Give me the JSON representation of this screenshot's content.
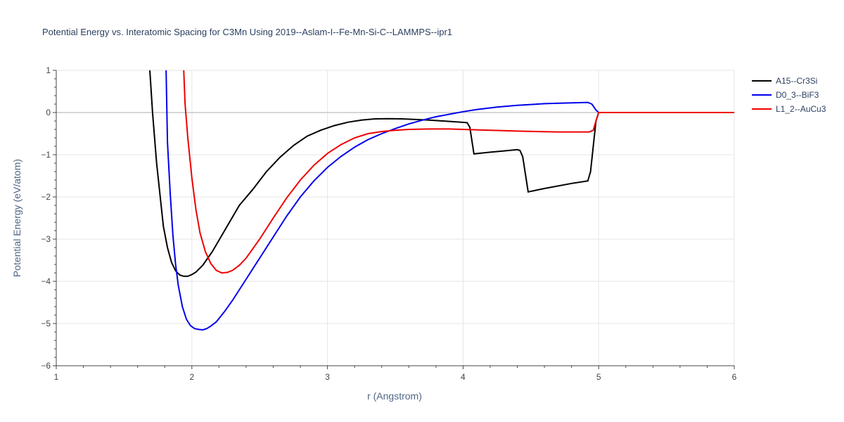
{
  "chart_data": {
    "type": "line",
    "title": "Potential Energy vs. Interatomic Spacing for C3Mn Using 2019--Aslam-I--Fe-Mn-Si-C--LAMMPS--ipr1",
    "xlabel": "r (Angstrom)",
    "ylabel": "Potential Energy (eV/atom)",
    "xlim": [
      1,
      6
    ],
    "ylim": [
      -6,
      1
    ],
    "xticks": [
      1,
      2,
      3,
      4,
      5,
      6
    ],
    "xtick_labels": [
      "1",
      "2",
      "3",
      "4",
      "5",
      "6"
    ],
    "yticks": [
      1,
      0,
      -1,
      -2,
      -3,
      -4,
      -5,
      -6
    ],
    "ytick_labels": [
      "1",
      "0",
      "−1",
      "−2",
      "−3",
      "−4",
      "−5",
      "−6"
    ],
    "grid": true,
    "legend_position": "top-right",
    "series": [
      {
        "name": "A15--Cr3Si",
        "color": "#000000",
        "x": [
          1.69,
          1.71,
          1.74,
          1.76,
          1.79,
          1.82,
          1.85,
          1.88,
          1.91,
          1.94,
          1.97,
          2.0,
          2.03,
          2.08,
          2.15,
          2.25,
          2.35,
          2.45,
          2.55,
          2.65,
          2.75,
          2.85,
          2.95,
          3.05,
          3.15,
          3.25,
          3.35,
          3.45,
          3.55,
          3.65,
          3.75,
          3.85,
          3.95,
          4.03,
          4.05,
          4.08,
          4.2,
          4.3,
          4.4,
          4.42,
          4.44,
          4.48,
          4.6,
          4.8,
          4.92,
          4.94,
          4.96,
          4.98,
          5.0,
          5.1,
          5.5,
          6.0
        ],
        "y": [
          1.0,
          0.0,
          -1.2,
          -1.8,
          -2.7,
          -3.2,
          -3.55,
          -3.75,
          -3.85,
          -3.88,
          -3.88,
          -3.84,
          -3.78,
          -3.62,
          -3.3,
          -2.75,
          -2.2,
          -1.82,
          -1.4,
          -1.06,
          -0.78,
          -0.56,
          -0.42,
          -0.31,
          -0.23,
          -0.18,
          -0.15,
          -0.145,
          -0.15,
          -0.165,
          -0.18,
          -0.2,
          -0.22,
          -0.24,
          -0.35,
          -0.98,
          -0.94,
          -0.91,
          -0.88,
          -0.9,
          -1.05,
          -1.88,
          -1.8,
          -1.68,
          -1.62,
          -1.4,
          -0.8,
          -0.2,
          0.0,
          0.0,
          0.0,
          0.0
        ]
      },
      {
        "name": "D0_3--BiF3",
        "color": "#0000ee",
        "x": [
          1.81,
          1.82,
          1.84,
          1.86,
          1.88,
          1.9,
          1.93,
          1.96,
          1.99,
          2.02,
          2.05,
          2.08,
          2.11,
          2.14,
          2.18,
          2.24,
          2.3,
          2.4,
          2.5,
          2.6,
          2.7,
          2.8,
          2.9,
          3.0,
          3.1,
          3.2,
          3.3,
          3.4,
          3.5,
          3.6,
          3.7,
          3.8,
          3.9,
          4.0,
          4.1,
          4.25,
          4.4,
          4.6,
          4.8,
          4.92,
          4.95,
          4.98,
          5.0,
          5.5,
          6.0
        ],
        "y": [
          1.0,
          -0.7,
          -1.9,
          -2.9,
          -3.6,
          -4.1,
          -4.6,
          -4.9,
          -5.05,
          -5.12,
          -5.14,
          -5.15,
          -5.12,
          -5.06,
          -4.96,
          -4.72,
          -4.45,
          -3.95,
          -3.45,
          -2.95,
          -2.45,
          -2.0,
          -1.62,
          -1.3,
          -1.04,
          -0.82,
          -0.64,
          -0.5,
          -0.38,
          -0.27,
          -0.18,
          -0.1,
          -0.04,
          0.02,
          0.07,
          0.13,
          0.17,
          0.21,
          0.23,
          0.24,
          0.2,
          0.06,
          0.0,
          0.0,
          0.0
        ]
      },
      {
        "name": "L1_2--AuCu3",
        "color": "#ee0000",
        "x": [
          1.94,
          1.95,
          1.97,
          2.0,
          2.03,
          2.06,
          2.1,
          2.14,
          2.18,
          2.22,
          2.26,
          2.3,
          2.35,
          2.4,
          2.5,
          2.6,
          2.7,
          2.8,
          2.9,
          3.0,
          3.1,
          3.2,
          3.3,
          3.4,
          3.5,
          3.6,
          3.75,
          3.9,
          4.1,
          4.4,
          4.7,
          4.93,
          4.96,
          4.98,
          5.0,
          5.5,
          6.0
        ],
        "y": [
          1.0,
          0.2,
          -0.6,
          -1.55,
          -2.3,
          -2.85,
          -3.3,
          -3.58,
          -3.74,
          -3.8,
          -3.79,
          -3.74,
          -3.62,
          -3.45,
          -3.0,
          -2.5,
          -2.02,
          -1.6,
          -1.25,
          -0.97,
          -0.76,
          -0.6,
          -0.5,
          -0.45,
          -0.42,
          -0.4,
          -0.39,
          -0.39,
          -0.41,
          -0.44,
          -0.46,
          -0.46,
          -0.42,
          -0.2,
          0.0,
          0.0,
          0.0
        ]
      }
    ]
  }
}
